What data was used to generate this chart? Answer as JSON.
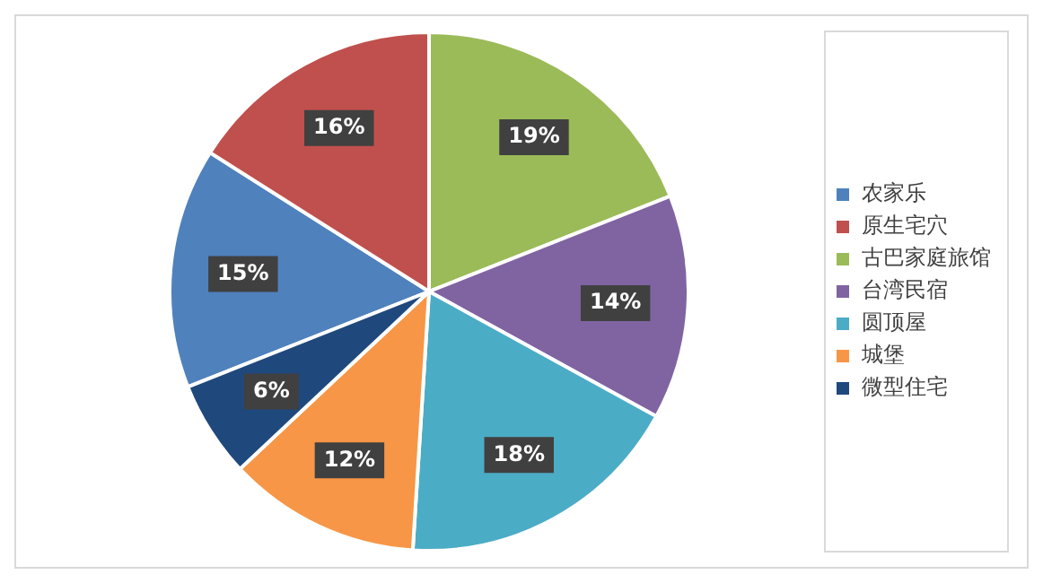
{
  "chart_data": {
    "type": "pie",
    "categories": [
      "农家乐",
      "原生宅穴",
      "古巴家庭旅馆",
      "台湾民宿",
      "圆顶屋",
      "城堡",
      "微型住宅"
    ],
    "values": [
      15,
      16,
      19,
      14,
      18,
      12,
      6
    ],
    "colors": [
      "#4f81bd",
      "#c0504d",
      "#9bbb59",
      "#8064a2",
      "#4bacc6",
      "#f79646",
      "#1f497d"
    ],
    "value_labels": [
      "15%",
      "16%",
      "19%",
      "14%",
      "18%",
      "12%",
      "6%"
    ],
    "legend": "right"
  }
}
